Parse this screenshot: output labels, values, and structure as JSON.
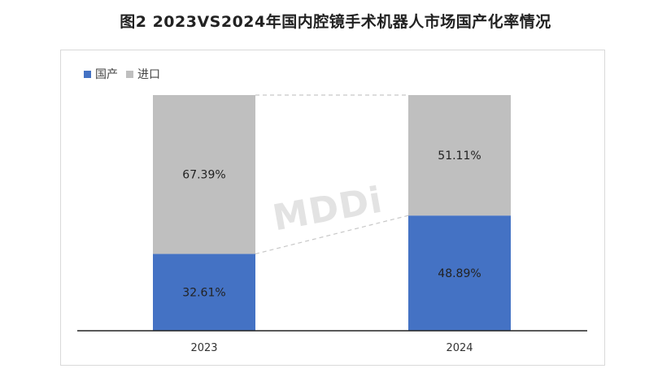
{
  "title": "图2 2023VS2024年国内腔镜手术机器人市场国产化率情况",
  "watermark": "MDDi",
  "colors": {
    "domestic": "#4472c4",
    "import": "#bfbfbf",
    "axis": "#222222",
    "connector": "#c8c8c8"
  },
  "chart_data": {
    "type": "bar",
    "stacked": true,
    "percent": true,
    "categories": [
      "2023",
      "2024"
    ],
    "series": [
      {
        "name": "国产",
        "values": [
          32.61,
          48.89
        ],
        "labels": [
          "32.61%",
          "48.89%"
        ]
      },
      {
        "name": "进口",
        "values": [
          67.39,
          51.11
        ],
        "labels": [
          "67.39%",
          "51.11%"
        ]
      }
    ],
    "ylim": [
      0,
      100
    ],
    "grid": false,
    "legend_position": "top-left"
  }
}
